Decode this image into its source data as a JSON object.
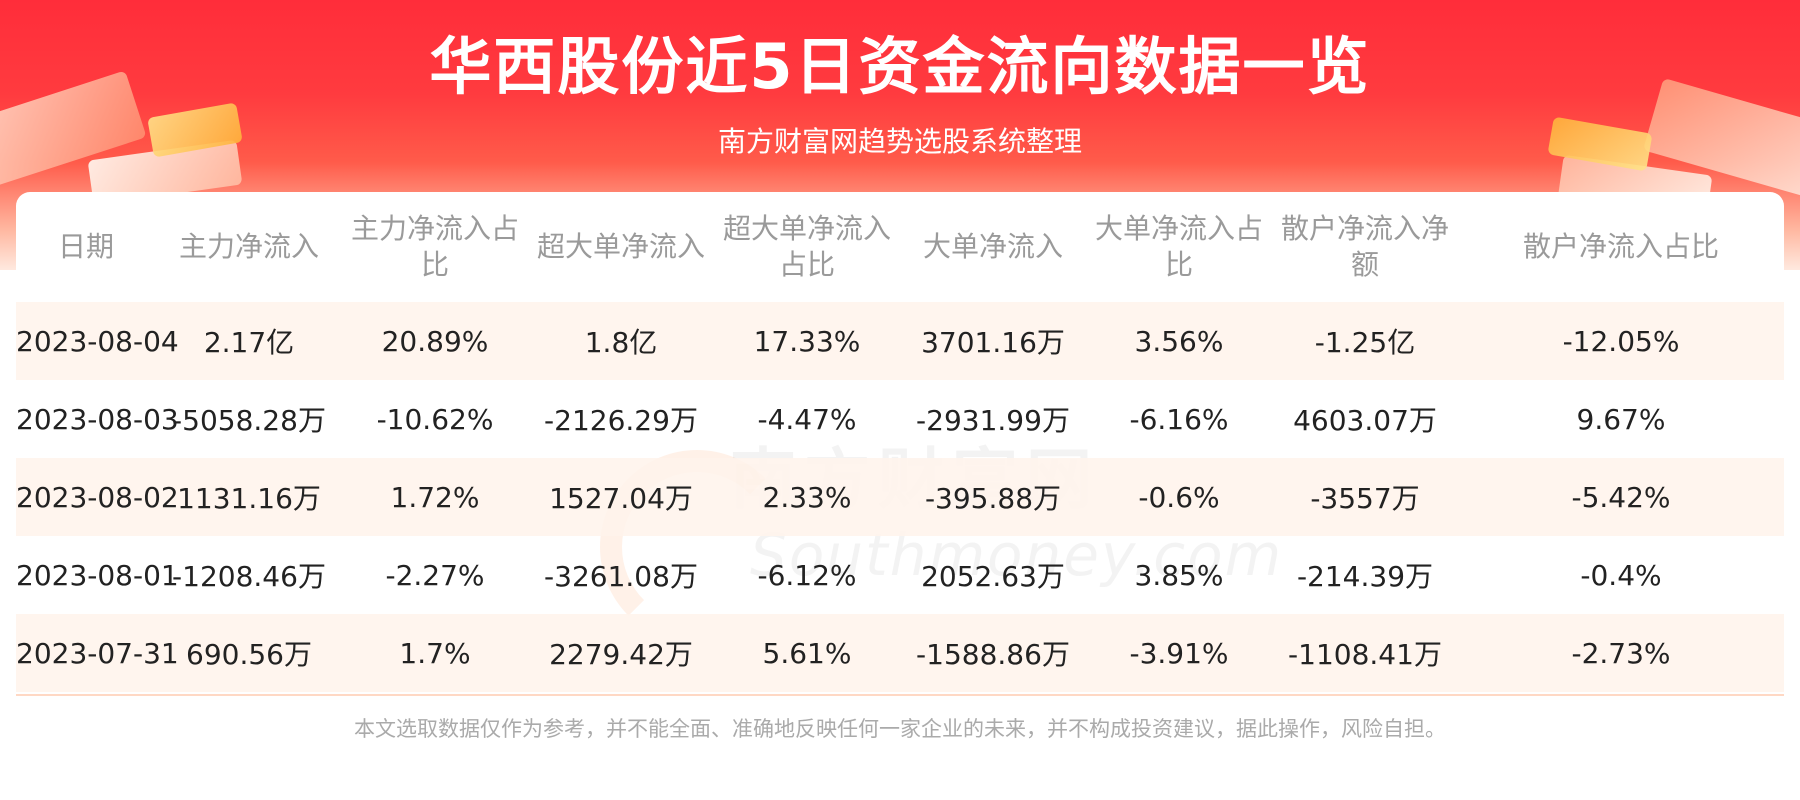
{
  "header": {
    "title": "华西股份近5日资金流向数据一览",
    "subtitle": "南方财富网趋势选股系统整理"
  },
  "watermark": {
    "cn": "南方财富网",
    "en": "Southmoney.com"
  },
  "table": {
    "columns": [
      "日期",
      "主力净流入",
      "主力净流入占比",
      "超大单净流入",
      "超大单净流入占比",
      "大单净流入",
      "大单净流入占比",
      "散户净流入净额",
      "散户净流入占比"
    ],
    "rows": [
      [
        "2023-08-04",
        "2.17亿",
        "20.89%",
        "1.8亿",
        "17.33%",
        "3701.16万",
        "3.56%",
        "-1.25亿",
        "-12.05%"
      ],
      [
        "2023-08-03",
        "-5058.28万",
        "-10.62%",
        "-2126.29万",
        "-4.47%",
        "-2931.99万",
        "-6.16%",
        "4603.07万",
        "9.67%"
      ],
      [
        "2023-08-02",
        "1131.16万",
        "1.72%",
        "1527.04万",
        "2.33%",
        "-395.88万",
        "-0.6%",
        "-3557万",
        "-5.42%"
      ],
      [
        "2023-08-01",
        "-1208.46万",
        "-2.27%",
        "-3261.08万",
        "-6.12%",
        "2052.63万",
        "3.85%",
        "-214.39万",
        "-0.4%"
      ],
      [
        "2023-07-31",
        "690.56万",
        "1.7%",
        "2279.42万",
        "5.61%",
        "-1588.86万",
        "-3.91%",
        "-1108.41万",
        "-2.73%"
      ]
    ]
  },
  "footer": {
    "disclaimer": "本文选取数据仅作为参考，并不能全面、准确地反映任何一家企业的未来，并不构成投资建议，据此操作，风险自担。"
  },
  "colors": {
    "banner_red": "#ff2d3a",
    "header_text": "#9a9a9a",
    "row_stripe": "#fff3eb",
    "body_text": "#222222"
  }
}
